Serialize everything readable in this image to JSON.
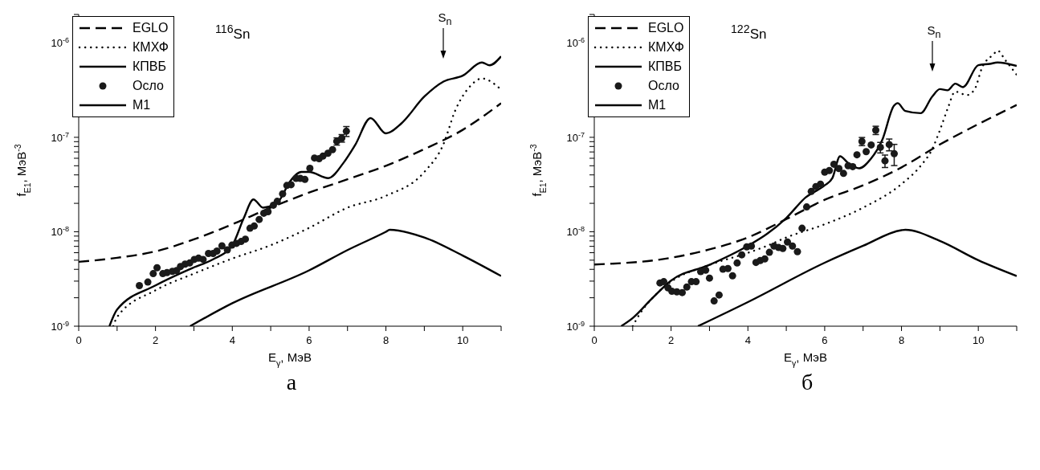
{
  "chart_data": [
    {
      "type": "line",
      "xlabel": "E$_{γ}$, МэВ",
      "ylabel": "f$_{E1}$, МэВ$^{-3}$",
      "log": "y",
      "legend": "top left",
      "xlim": [
        0,
        11
      ],
      "ylim": [
        1e-09,
        2e-06
      ],
      "xticks": [
        0,
        {
          "value": 1,
          "label": null
        },
        2,
        {
          "value": 3,
          "label": null
        },
        4,
        {
          "value": 5,
          "label": null
        },
        6,
        {
          "value": 7,
          "label": null
        },
        8,
        {
          "value": 9,
          "label": null
        },
        10,
        {
          "value": 11,
          "label": null
        }
      ],
      "yticks": [
        {
          "value": 1e-09,
          "label": "10$^{-9}$"
        },
        {
          "value": 2e-09,
          "label": null
        },
        {
          "value": 3e-09,
          "label": null
        },
        {
          "value": 4e-09,
          "label": null
        },
        {
          "value": 5e-09,
          "label": null
        },
        {
          "value": 6e-09,
          "label": null
        },
        {
          "value": 7e-09,
          "label": null
        },
        {
          "value": 8e-09,
          "label": null
        },
        {
          "value": 9e-09,
          "label": null
        },
        {
          "value": 1e-08,
          "label": "10$^{-8}$"
        },
        {
          "value": 2e-08,
          "label": null
        },
        {
          "value": 3e-08,
          "label": null
        },
        {
          "value": 4e-08,
          "label": null
        },
        {
          "value": 5e-08,
          "label": null
        },
        {
          "value": 6e-08,
          "label": null
        },
        {
          "value": 7e-08,
          "label": null
        },
        {
          "value": 8e-08,
          "label": null
        },
        {
          "value": 9e-08,
          "label": null
        },
        {
          "value": 1e-07,
          "label": "10$^{-7}$"
        },
        {
          "value": 2e-07,
          "label": null
        },
        {
          "value": 3e-07,
          "label": null
        },
        {
          "value": 4e-07,
          "label": null
        },
        {
          "value": 5e-07,
          "label": null
        },
        {
          "value": 6e-07,
          "label": null
        },
        {
          "value": 7e-07,
          "label": null
        },
        {
          "value": 8e-07,
          "label": null
        },
        {
          "value": 9e-07,
          "label": null
        },
        {
          "value": 1e-06,
          "label": "10$^{-6}$"
        },
        {
          "value": 2e-06,
          "label": null
        }
      ],
      "series": [
        {
          "name": "EGLO",
          "type": "line",
          "line_style": "dashed",
          "color": "#000000",
          "x": [
            0,
            1,
            2,
            3,
            4,
            5,
            6,
            7,
            8,
            9,
            10,
            11
          ],
          "values": [
            4.8e-09,
            5.3e-09,
            6.2e-09,
            8.3e-09,
            1.2e-08,
            1.8e-08,
            2.6e-08,
            3.6e-08,
            5e-08,
            7.5e-08,
            1.2e-07,
            2.3e-07
          ]
        },
        {
          "name": "КМХФ",
          "type": "line",
          "line_style": "dotted",
          "color": "#000000",
          "x": [
            0.9,
            1,
            2,
            3,
            4,
            5,
            6,
            7,
            8,
            9,
            9.5,
            9.8,
            10.2,
            10.5,
            11
          ],
          "values": [
            1e-09,
            1.25e-09,
            2.4e-09,
            3.6e-09,
            5.2e-09,
            7.2e-09,
            1.1e-08,
            1.8e-08,
            2.4e-08,
            4.3e-08,
            8.5e-08,
            1.9e-07,
            3.5e-07,
            4.2e-07,
            3.2e-07
          ]
        },
        {
          "name": "КПВБ",
          "type": "line",
          "line_style": "solid",
          "color": "#000000",
          "x": [
            0.8,
            1,
            2,
            3,
            3.5,
            4,
            4.3,
            4.55,
            4.8,
            5.2,
            5.5,
            5.8,
            6,
            6.5,
            6.9,
            7.2,
            7.6,
            8,
            8.4,
            9,
            9.5,
            10,
            10.5,
            10.7,
            11
          ],
          "values": [
            1e-09,
            1.5e-09,
            2.7e-09,
            4.2e-09,
            5.1e-09,
            7.2e-09,
            1.4e-08,
            2.2e-08,
            1.8e-08,
            2.1e-08,
            3.4e-08,
            4.3e-08,
            4.3e-08,
            3.7e-08,
            5.4e-08,
            8.3e-08,
            1.6e-07,
            1.1e-07,
            1.4e-07,
            2.7e-07,
            3.9e-07,
            4.5e-07,
            6.2e-07,
            5.8e-07,
            7.2e-07
          ]
        },
        {
          "name": "Осло",
          "type": "scatter",
          "marker": "circle",
          "color": "#1a1a1a",
          "x": [
            1.58,
            1.8,
            1.94,
            2.04,
            2.19,
            2.3,
            2.44,
            2.55,
            2.65,
            2.77,
            2.89,
            3.01,
            3.12,
            3.24,
            3.38,
            3.5,
            3.6,
            3.73,
            3.87,
            3.99,
            4.11,
            4.23,
            4.34,
            4.46,
            4.57,
            4.7,
            4.82,
            4.93,
            5.07,
            5.17,
            5.31,
            5.42,
            5.53,
            5.66,
            5.77,
            5.89,
            6.02,
            6.14,
            6.26,
            6.36,
            6.49,
            6.61,
            6.72,
            6.85,
            6.97
          ],
          "values": [
            2.69e-09,
            2.93e-09,
            3.6e-09,
            4.16e-09,
            3.6e-09,
            3.7e-09,
            3.81e-09,
            3.88e-09,
            4.28e-09,
            4.54e-09,
            4.67e-09,
            5.09e-09,
            5.25e-09,
            5.09e-09,
            5.89e-09,
            5.89e-09,
            6.25e-09,
            7.1e-09,
            6.43e-09,
            7.22e-09,
            7.53e-09,
            7.88e-09,
            8.35e-09,
            1.09e-08,
            1.15e-08,
            1.35e-08,
            1.57e-08,
            1.63e-08,
            1.91e-08,
            2.1e-08,
            2.52e-08,
            3.09e-08,
            3.15e-08,
            3.68e-08,
            3.68e-08,
            3.58e-08,
            4.7e-08,
            6.04e-08,
            5.93e-08,
            6.32e-08,
            6.78e-08,
            7.4e-08,
            9.07e-08,
            9.79e-08,
            1.16e-07
          ],
          "errors": [
            null,
            null,
            null,
            null,
            null,
            null,
            null,
            null,
            null,
            null,
            null,
            null,
            null,
            null,
            null,
            null,
            null,
            null,
            null,
            null,
            null,
            null,
            null,
            null,
            null,
            null,
            null,
            null,
            null,
            null,
            null,
            null,
            null,
            null,
            null,
            null,
            null,
            null,
            null,
            null,
            null,
            null,
            8e-09,
            9e-09,
            1.4e-08
          ]
        },
        {
          "name": "M1",
          "type": "line",
          "line_style": "solid",
          "color": "#000000",
          "x": [
            2.9,
            4,
            6,
            7,
            8,
            8.1,
            9,
            10,
            11
          ],
          "values": [
            1e-09,
            1.75e-09,
            3.9e-09,
            6.4e-09,
            1e-08,
            1.05e-08,
            8.7e-09,
            5.6e-09,
            3.4e-09
          ]
        }
      ],
      "annotations": [
        "$^{116}$Sn",
        "S$_{n}$",
        "а"
      ]
    },
    {
      "type": "line",
      "xlabel": "E$_{γ}$, МэВ",
      "ylabel": "f$_{E1}$, МэВ$^{-3}$",
      "log": "y",
      "legend": "top left",
      "xlim": [
        0,
        11
      ],
      "ylim": [
        1e-09,
        2e-06
      ],
      "xticks": [
        0,
        {
          "value": 1,
          "label": null
        },
        2,
        {
          "value": 3,
          "label": null
        },
        4,
        {
          "value": 5,
          "label": null
        },
        6,
        {
          "value": 7,
          "label": null
        },
        8,
        {
          "value": 9,
          "label": null
        },
        10,
        {
          "value": 11,
          "label": null
        }
      ],
      "yticks": [
        {
          "value": 1e-09,
          "label": "10$^{-9}$"
        },
        {
          "value": 2e-09,
          "label": null
        },
        {
          "value": 3e-09,
          "label": null
        },
        {
          "value": 4e-09,
          "label": null
        },
        {
          "value": 5e-09,
          "label": null
        },
        {
          "value": 6e-09,
          "label": null
        },
        {
          "value": 7e-09,
          "label": null
        },
        {
          "value": 8e-09,
          "label": null
        },
        {
          "value": 9e-09,
          "label": null
        },
        {
          "value": 1e-08,
          "label": "10$^{-8}$"
        },
        {
          "value": 2e-08,
          "label": null
        },
        {
          "value": 3e-08,
          "label": null
        },
        {
          "value": 4e-08,
          "label": null
        },
        {
          "value": 5e-08,
          "label": null
        },
        {
          "value": 6e-08,
          "label": null
        },
        {
          "value": 7e-08,
          "label": null
        },
        {
          "value": 8e-08,
          "label": null
        },
        {
          "value": 9e-08,
          "label": null
        },
        {
          "value": 1e-07,
          "label": "10$^{-7}$"
        },
        {
          "value": 2e-07,
          "label": null
        },
        {
          "value": 3e-07,
          "label": null
        },
        {
          "value": 4e-07,
          "label": null
        },
        {
          "value": 5e-07,
          "label": null
        },
        {
          "value": 6e-07,
          "label": null
        },
        {
          "value": 7e-07,
          "label": null
        },
        {
          "value": 8e-07,
          "label": null
        },
        {
          "value": 9e-07,
          "label": null
        },
        {
          "value": 1e-06,
          "label": "10$^{-6}$"
        },
        {
          "value": 2e-06,
          "label": null
        }
      ],
      "series": [
        {
          "name": "EGLO",
          "type": "line",
          "line_style": "dashed",
          "color": "#000000",
          "x": [
            0,
            2,
            3,
            4,
            5,
            6,
            7,
            8,
            9,
            10,
            11
          ],
          "values": [
            4.5e-09,
            5.3e-09,
            6.5e-09,
            8.7e-09,
            1.36e-08,
            2.18e-08,
            3.1e-08,
            4.8e-08,
            8.4e-08,
            1.38e-07,
            2.2e-07
          ]
        },
        {
          "name": "КМХФ",
          "type": "line",
          "line_style": "dotted",
          "color": "#000000",
          "x": [
            1,
            1.2,
            1.5,
            2,
            3,
            4,
            4.5,
            5,
            6,
            7,
            8,
            8.5,
            8.8,
            9,
            9.2,
            9.4,
            9.7,
            9.9,
            10.1,
            10.4,
            10.5,
            10.7,
            11
          ],
          "values": [
            1e-09,
            1.38e-09,
            1.96e-09,
            2.96e-09,
            4.46e-09,
            5.98e-09,
            7.1e-09,
            8.7e-09,
            1.2e-08,
            1.8e-08,
            3.2e-08,
            5e-08,
            7.5e-08,
            1.19e-07,
            2e-07,
            3.05e-07,
            2.8e-07,
            3.2e-07,
            5.5e-07,
            7.6e-07,
            8.3e-07,
            6.6e-07,
            4.6e-07
          ]
        },
        {
          "name": "КПВБ",
          "type": "line",
          "line_style": "solid",
          "color": "#000000",
          "x": [
            0.7,
            1,
            1.5,
            2,
            3,
            4,
            4.5,
            5,
            5.5,
            6,
            6.2,
            6.4,
            6.6,
            6.9,
            7.2,
            7.5,
            7.8,
            7.9,
            8.1,
            8.5,
            8.8,
            9,
            9.2,
            9.4,
            9.6,
            10,
            10.3,
            10.5,
            11
          ],
          "values": [
            1e-09,
            1.22e-09,
            1.96e-09,
            3.04e-09,
            4.46e-09,
            7.1e-09,
            9.5e-09,
            1.4e-08,
            2.3e-08,
            3.1e-08,
            3.7e-08,
            6.3e-08,
            5.4e-08,
            4.7e-08,
            5.9e-08,
            9.4e-08,
            2.15e-07,
            2.3e-07,
            1.9e-07,
            1.8e-07,
            2.7e-07,
            3.24e-07,
            3.15e-07,
            3.7e-07,
            3.4e-07,
            5.8e-07,
            6e-07,
            6.2e-07,
            5.7e-07
          ]
        },
        {
          "name": "Осло",
          "type": "scatter",
          "marker": "circle",
          "color": "#1a1a1a",
          "x": [
            1.71,
            1.81,
            1.92,
            2.02,
            2.15,
            2.29,
            2.41,
            2.53,
            2.65,
            2.77,
            2.9,
            3,
            3.12,
            3.25,
            3.35,
            3.48,
            3.6,
            3.72,
            3.84,
            3.97,
            4.09,
            4.21,
            4.32,
            4.44,
            4.56,
            4.68,
            4.8,
            4.91,
            5.03,
            5.16,
            5.29,
            5.41,
            5.53,
            5.65,
            5.77,
            5.89,
            6,
            6.12,
            6.24,
            6.37,
            6.49,
            6.61,
            6.73,
            6.84,
            6.97,
            7.08,
            7.21,
            7.33,
            7.45,
            7.57,
            7.68,
            7.81
          ],
          "values": [
            2.87e-09,
            2.96e-09,
            2.55e-09,
            2.34e-09,
            2.31e-09,
            2.27e-09,
            2.6e-09,
            2.96e-09,
            2.96e-09,
            3.78e-09,
            3.92e-09,
            3.23e-09,
            1.85e-09,
            2.14e-09,
            4.01e-09,
            4.08e-09,
            3.42e-09,
            4.67e-09,
            5.7e-09,
            6.92e-09,
            7.05e-09,
            4.73e-09,
            4.95e-09,
            5.16e-09,
            6.05e-09,
            7.05e-09,
            6.81e-09,
            6.65e-09,
            7.79e-09,
            7.05e-09,
            6.16e-09,
            1.09e-08,
            1.83e-08,
            2.67e-08,
            3.01e-08,
            3.19e-08,
            4.28e-08,
            4.45e-08,
            5.19e-08,
            4.67e-08,
            4.15e-08,
            5.01e-08,
            4.89e-08,
            6.53e-08,
            9.06e-08,
            7.05e-08,
            8.3e-08,
            1.19e-07,
            7.83e-08,
            5.64e-08,
            8.39e-08,
            6.72e-08
          ],
          "errors": [
            null,
            null,
            null,
            null,
            null,
            null,
            null,
            null,
            null,
            null,
            null,
            null,
            null,
            null,
            null,
            null,
            null,
            null,
            null,
            null,
            null,
            null,
            null,
            null,
            null,
            null,
            null,
            null,
            null,
            null,
            null,
            null,
            null,
            null,
            null,
            null,
            null,
            null,
            null,
            null,
            null,
            null,
            null,
            null,
            9e-09,
            null,
            null,
            1.2e-08,
            1e-08,
            8.5e-09,
            1.2e-08,
            1.7e-08
          ]
        },
        {
          "name": "M1",
          "type": "line",
          "line_style": "solid",
          "color": "#000000",
          "x": [
            2.7,
            4,
            6,
            7,
            8,
            8.1,
            9,
            10,
            11
          ],
          "values": [
            1e-09,
            1.8e-09,
            4.7e-09,
            7.1e-09,
            1.04e-08,
            1.05e-08,
            8e-09,
            5e-09,
            3.4e-09
          ]
        }
      ],
      "annotations": [
        "$^{122}$Sn",
        "S$_{n}$",
        "б"
      ]
    }
  ]
}
